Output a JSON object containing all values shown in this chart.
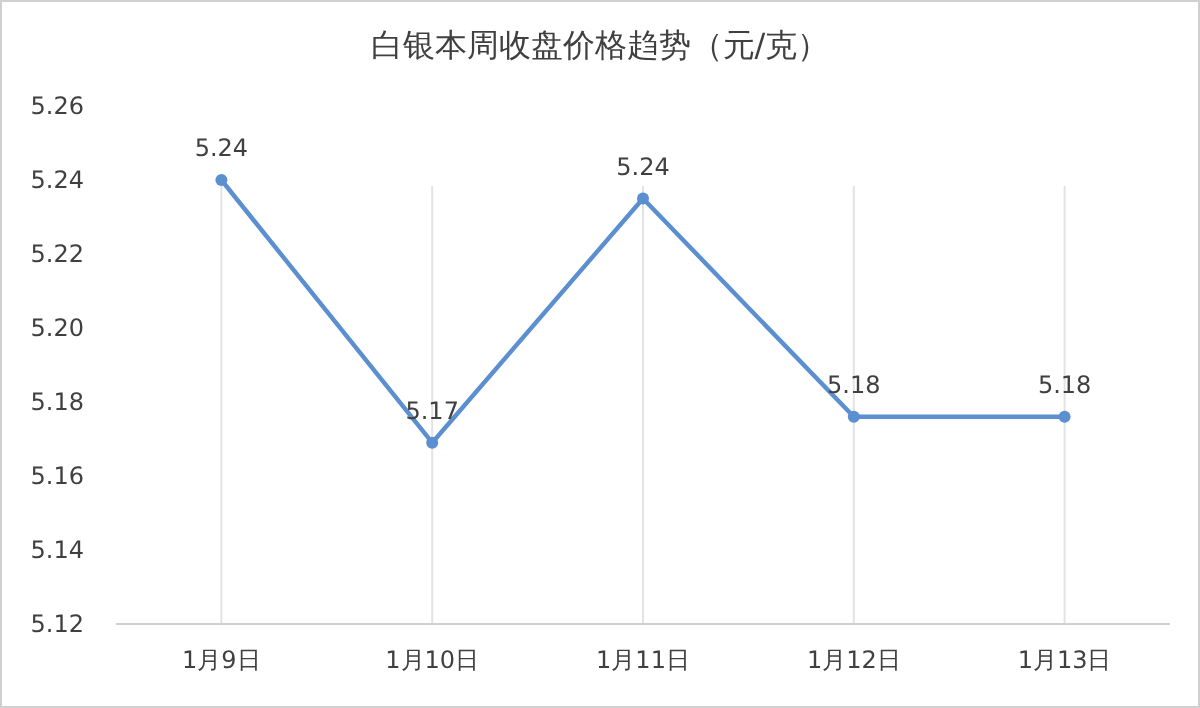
{
  "chart_data": {
    "type": "line",
    "title": "白银本周收盘价格趋势（元/克）",
    "categories": [
      "1月9日",
      "1月10日",
      "1月11日",
      "1月12日",
      "1月13日"
    ],
    "series": [
      {
        "color": "#5b8fd0",
        "values": [
          5.24,
          5.169,
          5.235,
          5.176,
          5.176
        ],
        "value_labels": [
          "5.24",
          "5.17",
          "5.24",
          "5.18",
          "5.18"
        ]
      }
    ],
    "ylim": [
      5.12,
      5.26
    ],
    "yticks": [
      {
        "value": 5.12,
        "label": "5.12"
      },
      {
        "value": 5.14,
        "label": "5.14"
      },
      {
        "value": 5.16,
        "label": "5.16"
      },
      {
        "value": 5.18,
        "label": "5.18"
      },
      {
        "value": 5.2,
        "label": "5.20"
      },
      {
        "value": 5.22,
        "label": "5.22"
      },
      {
        "value": 5.24,
        "label": "5.24"
      },
      {
        "value": 5.26,
        "label": "5.26"
      }
    ],
    "grid": "x",
    "marker": "circle",
    "line_style": "solid"
  }
}
